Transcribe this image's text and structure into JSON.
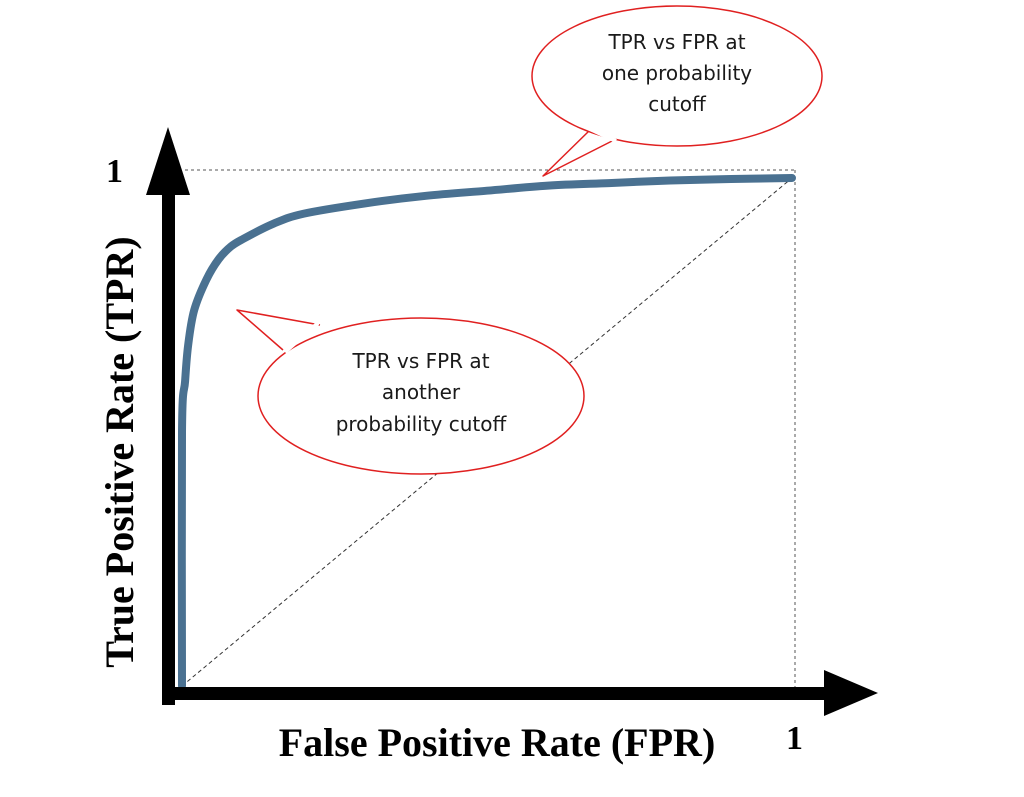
{
  "chart_data": {
    "type": "line",
    "xlabel": "False Positive Rate (FPR)",
    "ylabel": "True Positive Rate (TPR)",
    "xlim": [
      0,
      1
    ],
    "ylim": [
      0,
      1
    ],
    "x_tick_labels": [
      "1"
    ],
    "y_tick_labels": [
      "1"
    ],
    "grid": false,
    "series": [
      {
        "x": [
          0.0,
          0.0,
          0.005,
          0.01,
          0.02,
          0.04,
          0.06,
          0.08,
          0.1,
          0.15,
          0.2,
          0.3,
          0.4,
          0.5,
          0.6,
          0.7,
          0.8,
          0.9,
          1.0
        ],
        "y": [
          0.0,
          0.5,
          0.6,
          0.67,
          0.74,
          0.8,
          0.84,
          0.865,
          0.88,
          0.91,
          0.93,
          0.95,
          0.965,
          0.975,
          0.985,
          0.99,
          0.995,
          0.998,
          1.0
        ],
        "color": "#4a7191"
      }
    ],
    "reference_line": {
      "x": [
        0,
        1
      ],
      "y": [
        0,
        1
      ],
      "style": "dashed"
    },
    "annotations": [
      {
        "lines": [
          "TPR vs FPR at",
          "one probability",
          "cutoff"
        ],
        "color": "#e02020"
      },
      {
        "lines": [
          "TPR vs FPR at",
          "another",
          "probability cutoff"
        ],
        "color": "#e02020"
      }
    ]
  }
}
